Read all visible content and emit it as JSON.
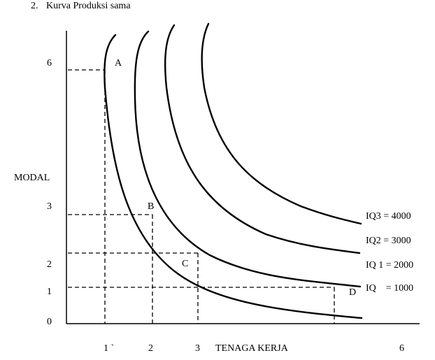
{
  "heading": {
    "number": "2.",
    "title": "Kurva Produksi sama"
  },
  "axes": {
    "ylabel": "MODAL",
    "xlabel": "TENAGA KERJA",
    "yticks": [
      "6",
      "3",
      "2",
      "1",
      "0"
    ],
    "xticks": [
      "1 `",
      "2",
      "3",
      "6"
    ]
  },
  "points": {
    "a": "A",
    "b": "B",
    "c": "C",
    "d": "D"
  },
  "curves": {
    "iq": "IQ    = 1000",
    "iq1": "IQ 1 = 2000",
    "iq2": "IQ2 = 3000",
    "iq3": "IQ3 = 4000"
  }
}
